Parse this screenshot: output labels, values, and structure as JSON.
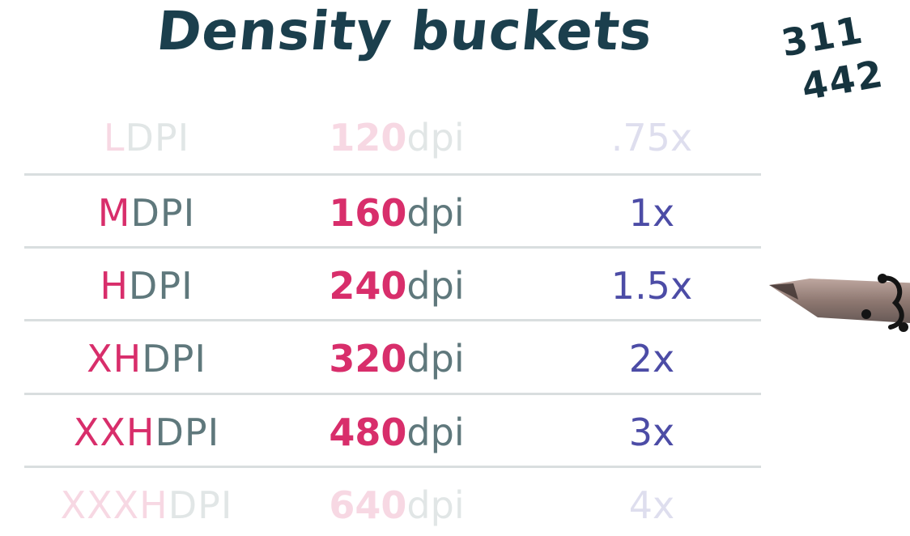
{
  "title": "Density buckets",
  "notes": [
    "311",
    "442"
  ],
  "rows": [
    {
      "prefix": "L",
      "suffix": "DPI",
      "dpi_value": "120",
      "dpi_unit": "dpi",
      "scale": ".75x",
      "faded": true
    },
    {
      "prefix": "M",
      "suffix": "DPI",
      "dpi_value": "160",
      "dpi_unit": "dpi",
      "scale": "1x",
      "faded": false
    },
    {
      "prefix": "H",
      "suffix": "DPI",
      "dpi_value": "240",
      "dpi_unit": "dpi",
      "scale": "1.5x",
      "faded": false
    },
    {
      "prefix": "XH",
      "suffix": "DPI",
      "dpi_value": "320",
      "dpi_unit": "dpi",
      "scale": "2x",
      "faded": false
    },
    {
      "prefix": "XXH",
      "suffix": "DPI",
      "dpi_value": "480",
      "dpi_unit": "dpi",
      "scale": "3x",
      "faded": false
    },
    {
      "prefix": "XXXH",
      "suffix": "DPI",
      "dpi_value": "640",
      "dpi_unit": "dpi",
      "scale": "4x",
      "faded": true
    }
  ],
  "colors": {
    "title": "#1b3f4d",
    "prefix": "#d82e6b",
    "suffix": "#5f787c",
    "scale": "#4c4ca6",
    "divider": "#d9dedf"
  },
  "icons": [
    "marker-pen-icon"
  ]
}
